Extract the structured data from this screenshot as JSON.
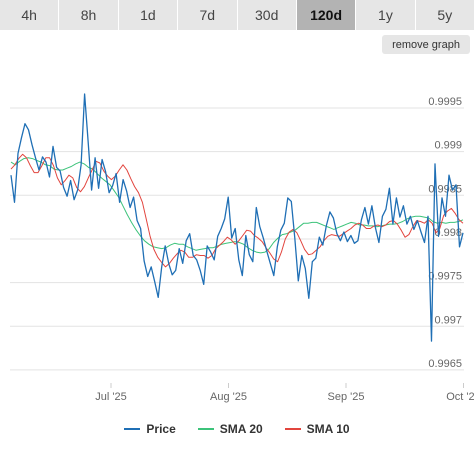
{
  "tabs": [
    {
      "label": "4h",
      "active": false
    },
    {
      "label": "8h",
      "active": false
    },
    {
      "label": "1d",
      "active": false
    },
    {
      "label": "7d",
      "active": false
    },
    {
      "label": "30d",
      "active": false
    },
    {
      "label": "120d",
      "active": true
    },
    {
      "label": "1y",
      "active": false
    },
    {
      "label": "5y",
      "active": false
    }
  ],
  "remove_graph_label": "remove graph",
  "chart_data": {
    "type": "line",
    "x_ticks": [
      "Jul '25",
      "Aug '25",
      "Sep '25",
      "Oct '25"
    ],
    "y_ticks": [
      "0.9995",
      "0.999",
      "0.9985",
      "0.998",
      "0.9975",
      "0.997",
      "0.9965"
    ],
    "ylim": [
      0.99635,
      1.00005
    ],
    "grid": true,
    "legend_position": "bottom",
    "colors": {
      "Price": "#1f6fb5",
      "SMA 20": "#3cc37a",
      "SMA 10": "#e2453e"
    },
    "series": [
      {
        "name": "Price",
        "values": [
          0.99873,
          0.99842,
          0.99898,
          0.99916,
          0.99932,
          0.99925,
          0.99908,
          0.99893,
          0.99879,
          0.99894,
          0.99888,
          0.99871,
          0.99906,
          0.99882,
          0.99878,
          0.99859,
          0.99849,
          0.99867,
          0.99845,
          0.99856,
          0.99885,
          0.99966,
          0.99912,
          0.99856,
          0.99893,
          0.99858,
          0.99891,
          0.99877,
          0.99853,
          0.99861,
          0.99875,
          0.99842,
          0.99868,
          0.99855,
          0.99836,
          0.99848,
          0.99821,
          0.99812,
          0.99775,
          0.99757,
          0.99768,
          0.99751,
          0.99733,
          0.99768,
          0.99792,
          0.99772,
          0.99759,
          0.99764,
          0.99789,
          0.99772,
          0.99798,
          0.99806,
          0.99781,
          0.99776,
          0.99764,
          0.99748,
          0.99792,
          0.99785,
          0.99776,
          0.99803,
          0.99812,
          0.99823,
          0.99848,
          0.99801,
          0.99812,
          0.99776,
          0.99758,
          0.99804,
          0.99782,
          0.99774,
          0.99836,
          0.99814,
          0.99801,
          0.99786,
          0.99772,
          0.99758,
          0.99791,
          0.9981,
          0.99818,
          0.99847,
          0.99843,
          0.99801,
          0.99752,
          0.99781,
          0.99766,
          0.99732,
          0.99774,
          0.99778,
          0.99802,
          0.99793,
          0.99815,
          0.99831,
          0.99824,
          0.99806,
          0.99798,
          0.99808,
          0.99797,
          0.99804,
          0.99795,
          0.99798,
          0.99822,
          0.99836,
          0.99817,
          0.99838,
          0.99813,
          0.99796,
          0.99826,
          0.99834,
          0.99858,
          0.99817,
          0.99847,
          0.99825,
          0.99838,
          0.99817,
          0.99826,
          0.99811,
          0.99821,
          0.99808,
          0.99796,
          0.99826,
          0.99683,
          0.99886,
          0.99803,
          0.99847,
          0.99826,
          0.99873,
          0.99856,
          0.99862,
          0.99791,
          0.99807
        ]
      },
      {
        "name": "SMA 20",
        "values": [
          0.99888,
          0.99885,
          0.99889,
          0.99892,
          0.99893,
          0.99892,
          0.9989,
          0.99888,
          0.99885,
          0.99884,
          0.9988,
          0.99879,
          0.99879,
          0.99881,
          0.99883,
          0.99886,
          0.99888,
          0.99886,
          0.99882,
          0.9988,
          0.99875,
          0.9987,
          0.99866,
          0.99862,
          0.99855,
          0.99848,
          0.99838,
          0.99828,
          0.99819,
          0.99811,
          0.99804,
          0.99798,
          0.99794,
          0.99791,
          0.9979,
          0.99789,
          0.9979,
          0.99793,
          0.99795,
          0.99794,
          0.99794,
          0.99791,
          0.99789,
          0.99787,
          0.99788,
          0.99789,
          0.9979,
          0.9979,
          0.99792,
          0.99794,
          0.99795,
          0.99796,
          0.99797,
          0.99796,
          0.99794,
          0.9979,
          0.99787,
          0.99785,
          0.99784,
          0.99785,
          0.99789,
          0.99796,
          0.99801,
          0.99805,
          0.99806,
          0.99808,
          0.9981,
          0.99814,
          0.99818,
          0.99818,
          0.99819,
          0.99819,
          0.99817,
          0.99815,
          0.99813,
          0.99811,
          0.99813,
          0.99815,
          0.99817,
          0.99819,
          0.99818,
          0.99816,
          0.99816,
          0.99815,
          0.99815,
          0.99814,
          0.99815,
          0.99816,
          0.99817,
          0.99817,
          0.99818,
          0.9982,
          0.99823,
          0.99825,
          0.99826,
          0.99826,
          0.99825,
          0.99824,
          0.9982,
          0.99818,
          0.99819,
          0.99818,
          0.99819,
          0.99819,
          0.9982,
          0.99822
        ]
      },
      {
        "name": "SMA 10",
        "values": [
          0.9988,
          0.99885,
          0.99892,
          0.99897,
          0.99893,
          0.99884,
          0.99876,
          0.99876,
          0.99884,
          0.99893,
          0.99893,
          0.99884,
          0.9987,
          0.99862,
          0.99867,
          0.99873,
          0.9987,
          0.99859,
          0.99854,
          0.9986,
          0.9987,
          0.99879,
          0.99889,
          0.99887,
          0.99878,
          0.99872,
          0.99868,
          0.99872,
          0.99879,
          0.99885,
          0.99879,
          0.99869,
          0.9986,
          0.99853,
          0.99842,
          0.99823,
          0.99803,
          0.99788,
          0.99779,
          0.99773,
          0.99768,
          0.99772,
          0.99778,
          0.99783,
          0.99787,
          0.99785,
          0.99779,
          0.99779,
          0.99782,
          0.99781,
          0.99781,
          0.99778,
          0.99781,
          0.99789,
          0.99793,
          0.99797,
          0.99802,
          0.99799,
          0.99794,
          0.99798,
          0.99804,
          0.9981,
          0.99809,
          0.99804,
          0.99801,
          0.99797,
          0.9979,
          0.99784,
          0.99777,
          0.99774,
          0.99785,
          0.998,
          0.99808,
          0.99811,
          0.99807,
          0.99798,
          0.99788,
          0.99782,
          0.99783,
          0.99787,
          0.99791,
          0.99798,
          0.99803,
          0.99805,
          0.99804,
          0.99803,
          0.99806,
          0.99809,
          0.99812,
          0.99816,
          0.99818,
          0.99816,
          0.99812,
          0.99812,
          0.99815,
          0.99816,
          0.99814,
          0.99816,
          0.9982,
          0.99821,
          0.99817,
          0.9981,
          0.99802,
          0.99805,
          0.99814,
          0.99821,
          0.9982,
          0.99818,
          0.99822,
          0.99818,
          0.99807,
          0.99812,
          0.99827,
          0.99832,
          0.99835,
          0.99829,
          0.99822,
          0.99818
        ]
      }
    ]
  }
}
